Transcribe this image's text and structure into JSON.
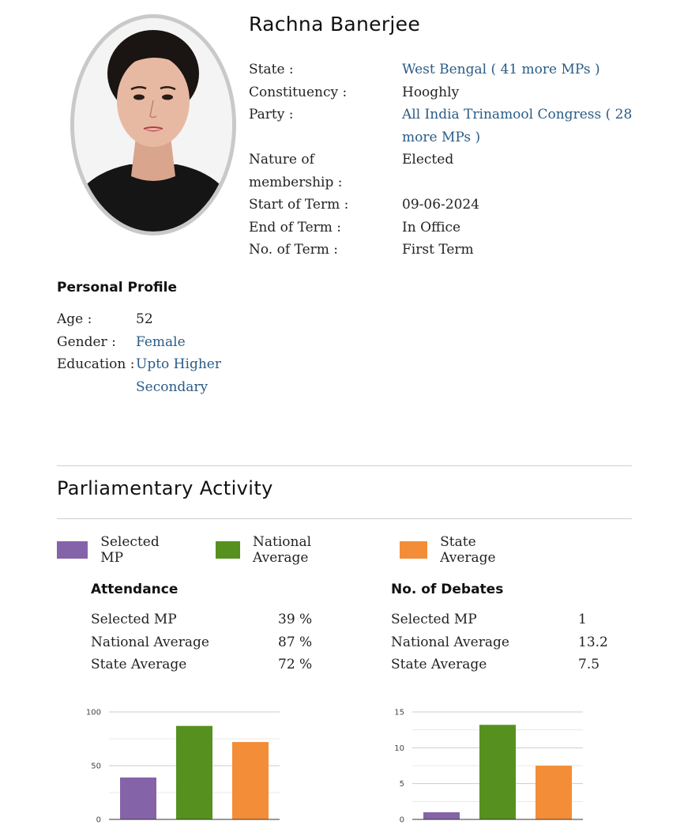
{
  "mp": {
    "name": "Rachna Banerjee",
    "details": [
      {
        "label": "State :",
        "value": "West Bengal ( 41 more MPs )",
        "link": true
      },
      {
        "label": "Constituency :",
        "value": "Hooghly",
        "link": false
      },
      {
        "label": "Party :",
        "value": "All India Trinamool Congress ( 28 more MPs )",
        "link": true
      },
      {
        "label": "Nature of membership :",
        "value": "Elected",
        "link": false
      },
      {
        "label": "Start of Term :",
        "value": "09-06-2024",
        "link": false
      },
      {
        "label": "End of Term :",
        "value": "In Office",
        "link": false
      },
      {
        "label": "No. of Term :",
        "value": "First Term",
        "link": false
      }
    ]
  },
  "personal_profile": {
    "heading": "Personal Profile",
    "age_label": "Age :",
    "age_value": "52",
    "gender_label": "Gender :",
    "gender_value": "Female",
    "education_label": "Education :",
    "education_value": "Upto Higher Secondary"
  },
  "activity": {
    "heading": "Parliamentary Activity",
    "legend": [
      {
        "label": "Selected MP",
        "color": "#8563a8"
      },
      {
        "label": "National Average",
        "color": "#56911f"
      },
      {
        "label": "State Average",
        "color": "#f38d38"
      }
    ],
    "attendance": {
      "title": "Attendance",
      "rows": [
        {
          "label": "Selected MP",
          "value": "39 %"
        },
        {
          "label": "National Average",
          "value": "87 %"
        },
        {
          "label": "State Average",
          "value": "72 %"
        }
      ]
    },
    "debates": {
      "title": "No. of Debates",
      "rows": [
        {
          "label": "Selected MP",
          "value": "1"
        },
        {
          "label": "National Average",
          "value": "13.2"
        },
        {
          "label": "State Average",
          "value": "7.5"
        }
      ]
    }
  },
  "chart_data": [
    {
      "type": "bar",
      "categories": [
        "Selected MP",
        "National Average",
        "State Average"
      ],
      "values": [
        39,
        87,
        72
      ],
      "colors": [
        "#8563a8",
        "#56911f",
        "#f38d38"
      ],
      "yticks": [
        0,
        50,
        100
      ],
      "ylim": [
        0,
        100
      ],
      "grid": true
    },
    {
      "type": "bar",
      "categories": [
        "Selected MP",
        "National Average",
        "State Average"
      ],
      "values": [
        1,
        13.2,
        7.5
      ],
      "colors": [
        "#8563a8",
        "#56911f",
        "#f38d38"
      ],
      "yticks": [
        0,
        5,
        10,
        15
      ],
      "ylim": [
        0,
        15
      ],
      "grid": true
    }
  ]
}
